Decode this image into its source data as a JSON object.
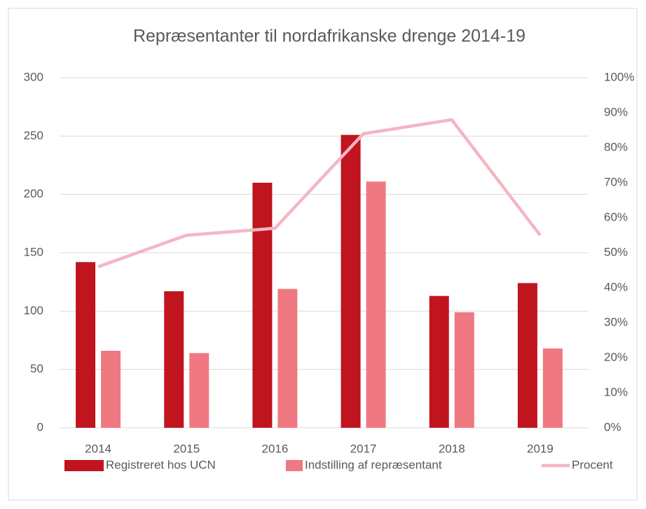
{
  "chart_data": {
    "type": "bar",
    "title": "Repræsentanter til nordafrikanske drenge 2014-19",
    "categories": [
      "2014",
      "2015",
      "2016",
      "2017",
      "2018",
      "2019"
    ],
    "series": [
      {
        "name": "Registreret hos UCN",
        "color": "#c0141f",
        "type": "bar",
        "values": [
          142,
          117,
          210,
          251,
          113,
          124
        ]
      },
      {
        "name": "Indstilling af repræsentant",
        "color": "#f07880",
        "type": "bar",
        "values": [
          66,
          64,
          119,
          211,
          99,
          68
        ]
      },
      {
        "name": "Procent",
        "color": "#f4b6c2",
        "type": "line",
        "axis": "y2",
        "values": [
          46,
          55,
          57,
          84,
          88,
          55
        ]
      }
    ],
    "ylim": [
      0,
      300
    ],
    "yticks": [
      0,
      50,
      100,
      150,
      200,
      250,
      300
    ],
    "y2lim": [
      0,
      100
    ],
    "y2ticks": [
      {
        "value": 0,
        "label": "0%"
      },
      {
        "value": 10,
        "label": "10%"
      },
      {
        "value": 20,
        "label": "20%"
      },
      {
        "value": 30,
        "label": "30%"
      },
      {
        "value": 40,
        "label": "40%"
      },
      {
        "value": 50,
        "label": "50%"
      },
      {
        "value": 60,
        "label": "60%"
      },
      {
        "value": 70,
        "label": "70%"
      },
      {
        "value": 80,
        "label": "80%"
      },
      {
        "value": 90,
        "label": "90%"
      },
      {
        "value": 100,
        "label": "100%"
      }
    ],
    "grid": true,
    "legend": "bottom"
  }
}
